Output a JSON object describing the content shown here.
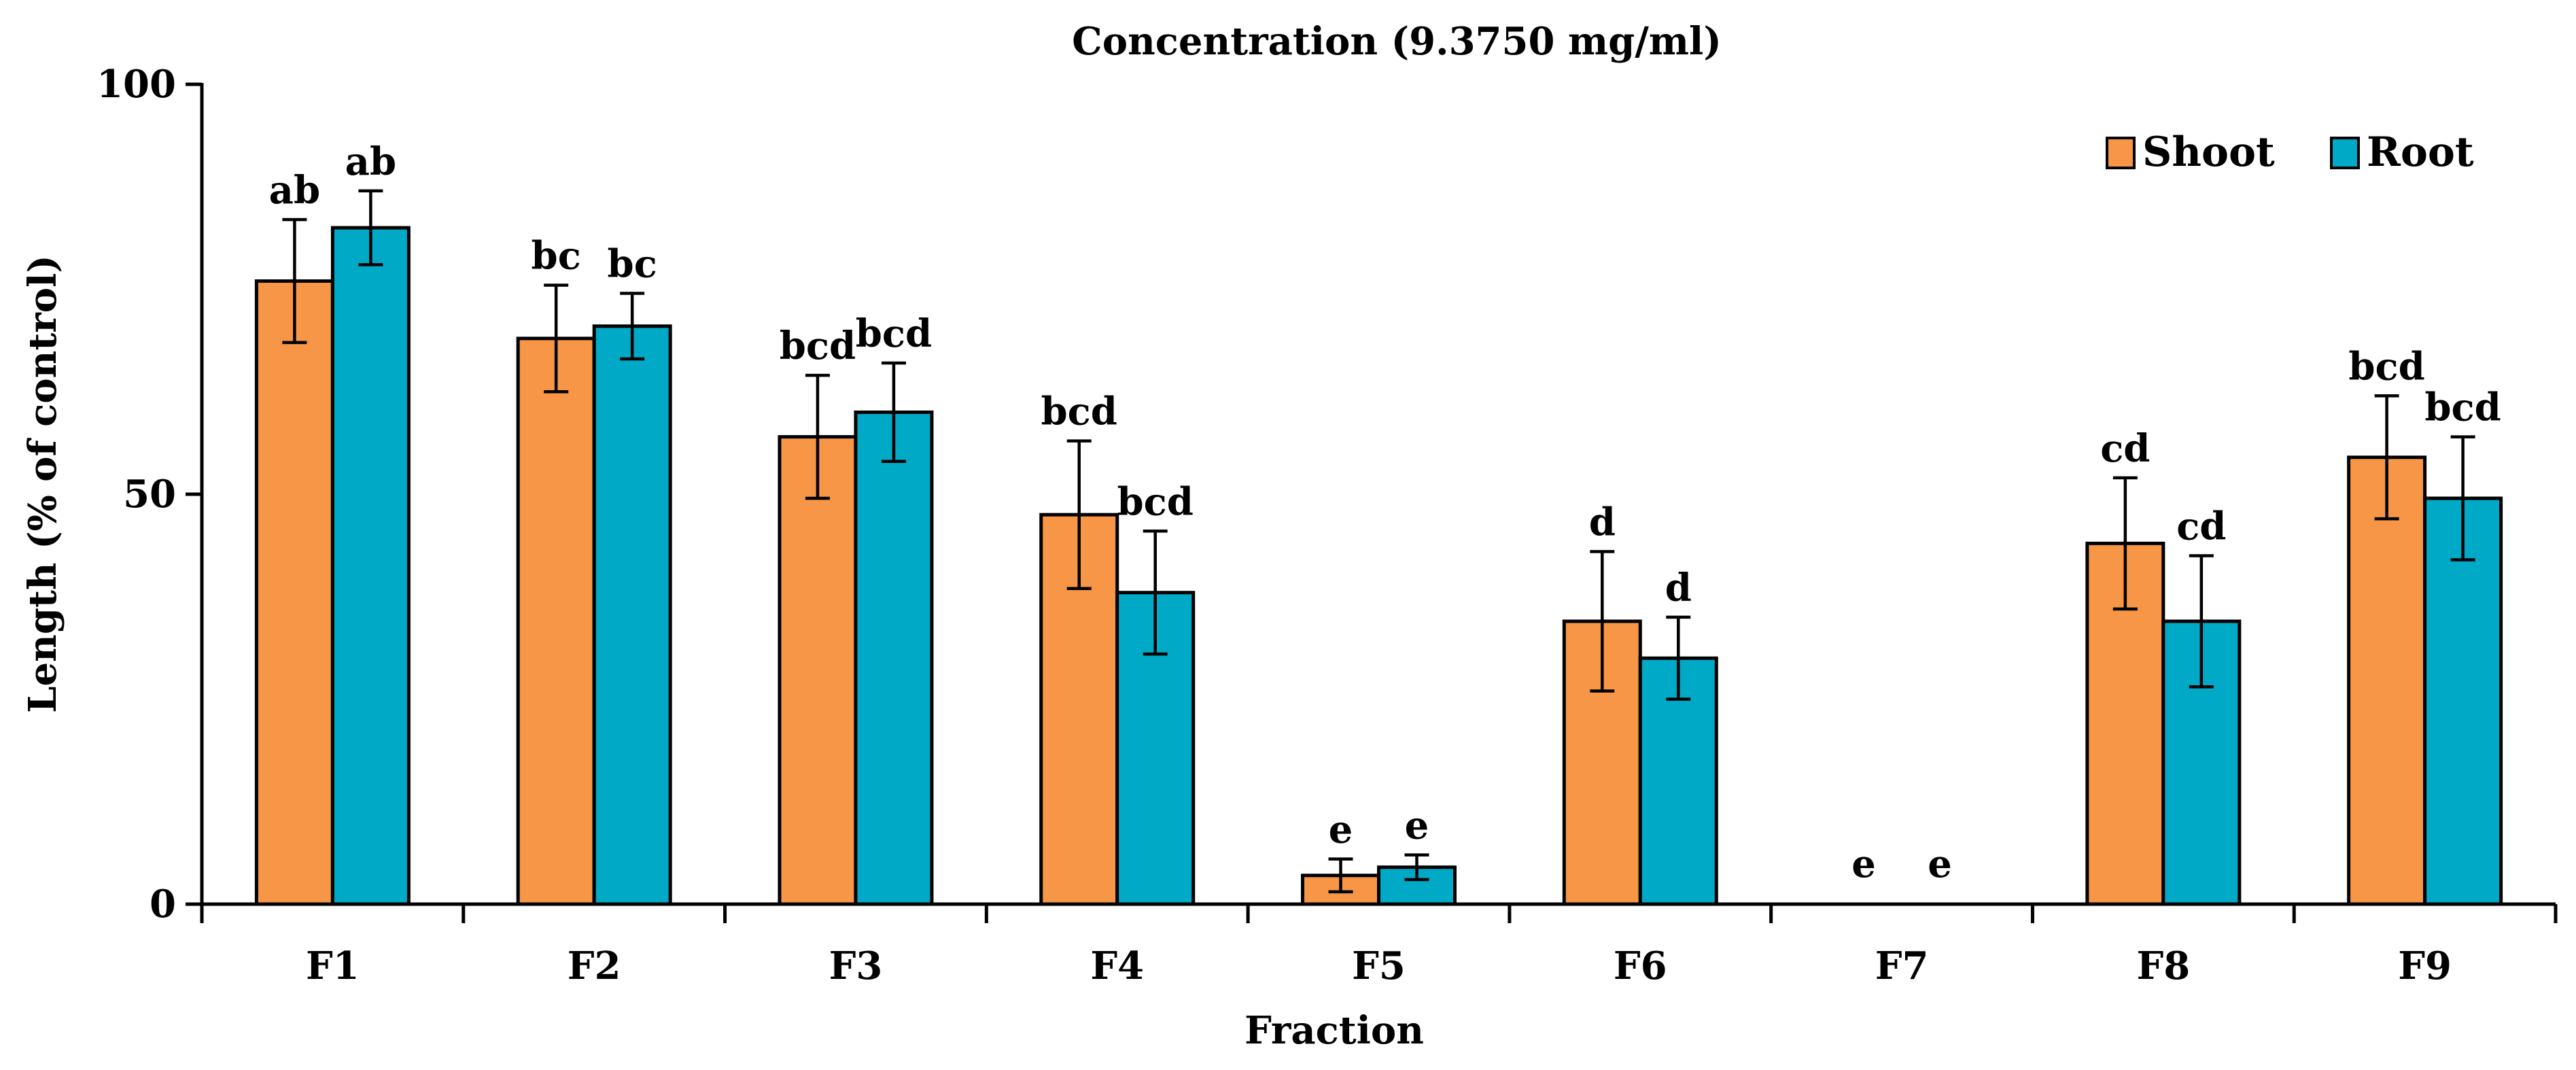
{
  "chart_data": {
    "type": "bar",
    "title": "Concentration (9.3750 mg/ml)",
    "xlabel": "Fraction",
    "ylabel": "Length (% of control)",
    "ylim": [
      0,
      100
    ],
    "yticks": [
      "0",
      "50",
      "100"
    ],
    "grid": false,
    "legend_position": "top-right",
    "categories": [
      "F1",
      "F2",
      "F3",
      "F4",
      "F5",
      "F6",
      "F7",
      "F8",
      "F9"
    ],
    "series": [
      {
        "name": "Shoot",
        "color": "#F79646",
        "values": [
          76,
          69,
          57,
          47.5,
          3.5,
          34.5,
          0,
          44,
          54.5
        ],
        "errors": [
          7.5,
          6.5,
          7.5,
          9,
          2,
          8.5,
          0,
          8,
          7.5
        ],
        "labels": [
          "ab",
          "bc",
          "bcd",
          "bcd",
          "e",
          "d",
          "e",
          "cd",
          "bcd"
        ]
      },
      {
        "name": "Root",
        "color": "#00A9C6",
        "values": [
          82.5,
          70.5,
          60,
          38,
          4.5,
          30,
          0,
          34.5,
          49.5
        ],
        "errors": [
          4.5,
          4,
          6,
          7.5,
          1.5,
          5,
          0,
          8,
          7.5
        ],
        "labels": [
          "ab",
          "bc",
          "bcd",
          "bcd",
          "e",
          "d",
          "e",
          "cd",
          "bcd"
        ]
      }
    ]
  }
}
